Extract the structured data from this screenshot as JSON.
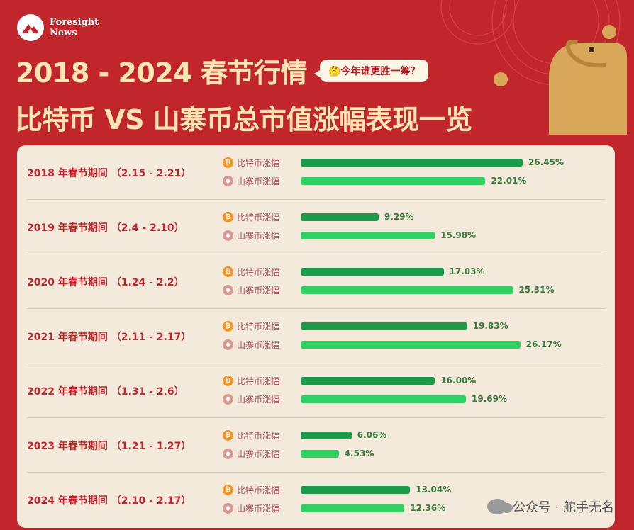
{
  "brand": {
    "line1": "Foresight",
    "line2": "News"
  },
  "title_line1": "2018 - 2024 春节行情",
  "bubble_text": "🤔今年谁更胜一筹？",
  "title_line2": "比特币 VS 山寨币总市值涨幅表现一览",
  "legend": {
    "btc": "比特币涨幅",
    "alt": "山寨币涨幅"
  },
  "icons": {
    "btc": "bitcoin-coin-icon",
    "alt": "altcoin-coin-icon"
  },
  "colors": {
    "btc_bar": "#1e9b4a",
    "alt_bar": "#2fd163",
    "background": "#c0262c",
    "card": "#f3eadb"
  },
  "watermark": "公众号 · 舵手无名",
  "chart_data": {
    "type": "bar",
    "orientation": "horizontal",
    "title": "2018 - 2024 春节行情 比特币 VS 山寨币总市值涨幅表现一览",
    "categories": [
      "2018 年春节期间 （2.15 - 2.21）",
      "2019 年春节期间 （2.4 - 2.10）",
      "2020 年春节期间 （1.24 - 2.2）",
      "2021 年春节期间 （2.11 - 2.17）",
      "2022 年春节期间 （1.31 - 2.6）",
      "2023 年春节期间 （1.21 - 1.27）",
      "2024 年春节期间 （2.10 - 2.17）"
    ],
    "series": [
      {
        "name": "比特币涨幅",
        "values": [
          26.45,
          9.29,
          17.03,
          19.83,
          16.0,
          6.06,
          13.04
        ],
        "labels": [
          "26.45%",
          "9.29%",
          "17.03%",
          "19.83%",
          "16.00%",
          "6.06%",
          "13.04%"
        ]
      },
      {
        "name": "山寨币涨幅",
        "values": [
          22.01,
          15.98,
          25.31,
          26.17,
          19.69,
          4.53,
          12.36
        ],
        "labels": [
          "22.01%",
          "15.98%",
          "25.31%",
          "26.17%",
          "19.69%",
          "4.53%",
          "12.36%"
        ]
      }
    ],
    "unit": "%",
    "grid": false
  }
}
